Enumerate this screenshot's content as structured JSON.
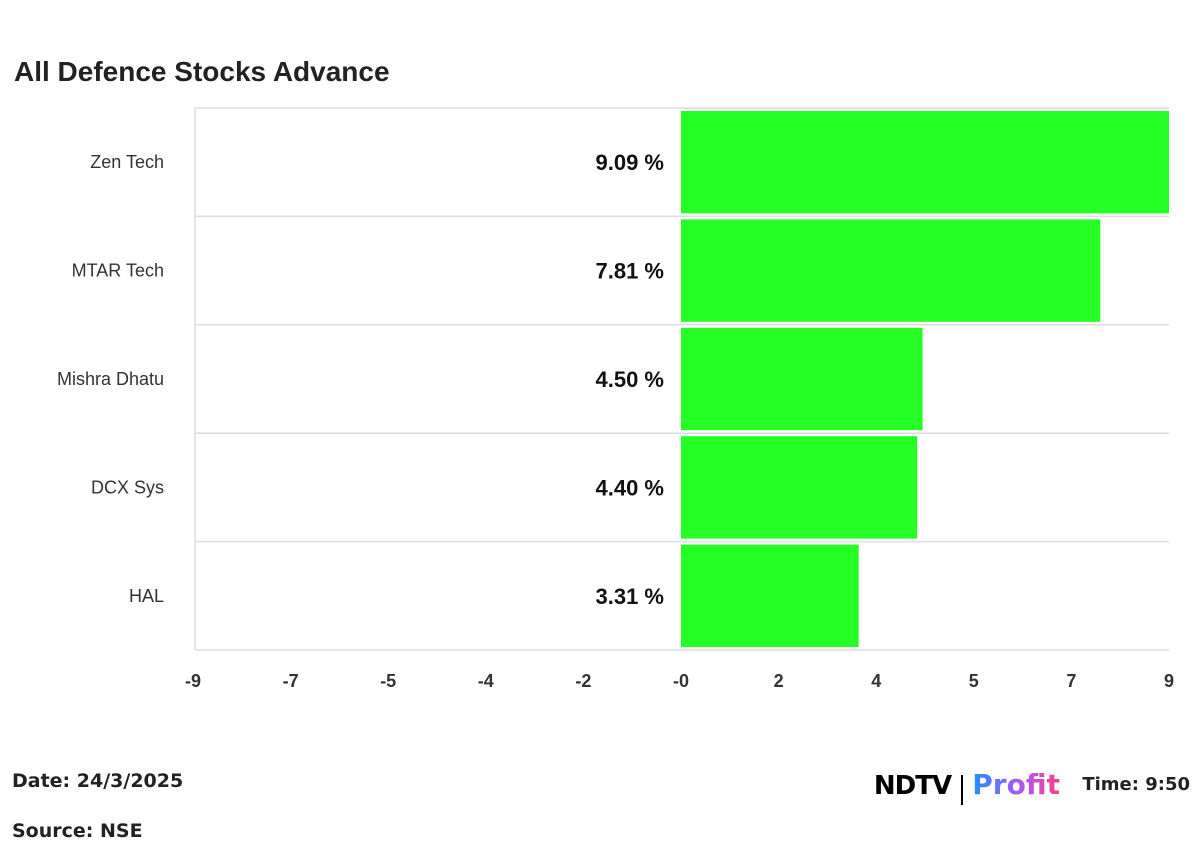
{
  "chart_data": {
    "type": "bar",
    "orientation": "horizontal",
    "title": "All Defence Stocks Advance",
    "categories": [
      "Zen Tech",
      "MTAR Tech",
      "Mishra Dhatu",
      "DCX Sys",
      "HAL"
    ],
    "values": [
      9.09,
      7.81,
      4.5,
      4.4,
      3.31
    ],
    "data_labels": [
      "9.09 %",
      "7.81 %",
      "4.50 %",
      "4.40 %",
      "3.31 %"
    ],
    "xlim": [
      -9.09,
      9.09
    ],
    "x_tick_labels": [
      "-9",
      "-7",
      "-5",
      "-4",
      "-2",
      "-0",
      "2",
      "4",
      "5",
      "7",
      "9"
    ],
    "grid": "horizontal row separators",
    "bar_color": "#26ff26"
  },
  "footer": {
    "date": "Date: 24/3/2025",
    "time": "Time: 9:50",
    "source": "Source: NSE"
  },
  "logo": {
    "left": "NDTV",
    "right": "Profit"
  }
}
